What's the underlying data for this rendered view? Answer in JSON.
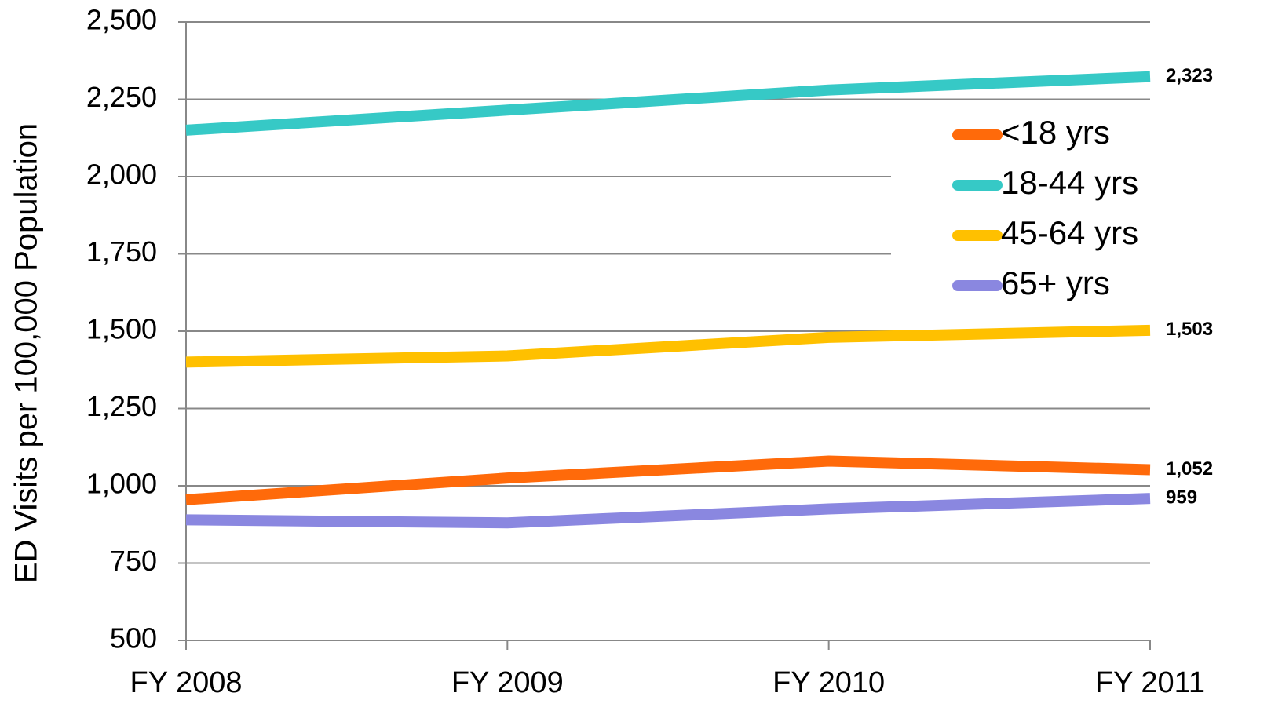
{
  "chart_data": {
    "type": "line",
    "y_label": "ED Visits  per 100,000 Population",
    "categories": [
      "FY 2008",
      "FY 2009",
      "FY 2010",
      "FY 2011"
    ],
    "series": [
      {
        "name": "<18 yrs",
        "color": "#ff6a0a",
        "values": [
          955,
          1025,
          1080,
          1052
        ],
        "value_labels": [
          null,
          null,
          null,
          "1,052"
        ]
      },
      {
        "name": "18-44 yrs",
        "color": "#36c9c6",
        "values": [
          2150,
          2215,
          2280,
          2323
        ],
        "value_labels": [
          null,
          null,
          null,
          "2,323"
        ]
      },
      {
        "name": "45-64 yrs",
        "color": "#ffc000",
        "values": [
          1400,
          1420,
          1480,
          1503
        ],
        "value_labels": [
          null,
          null,
          null,
          "1,503"
        ]
      },
      {
        "name": "65+ yrs",
        "color": "#8a87e0",
        "values": [
          890,
          880,
          925,
          959
        ],
        "value_labels": [
          null,
          null,
          null,
          "959"
        ]
      }
    ],
    "ylim": [
      500,
      2500
    ],
    "yticks": [
      {
        "value": 500,
        "label": "500"
      },
      {
        "value": 750,
        "label": "750"
      },
      {
        "value": 1000,
        "label": "1,000"
      },
      {
        "value": 1250,
        "label": "1,250"
      },
      {
        "value": 1500,
        "label": "1,500"
      },
      {
        "value": 1750,
        "label": "1,750"
      },
      {
        "value": 2000,
        "label": "2,000"
      },
      {
        "value": 2250,
        "label": "2,250"
      },
      {
        "value": 2500,
        "label": "2,500"
      }
    ],
    "grid": true,
    "legend": "right"
  }
}
